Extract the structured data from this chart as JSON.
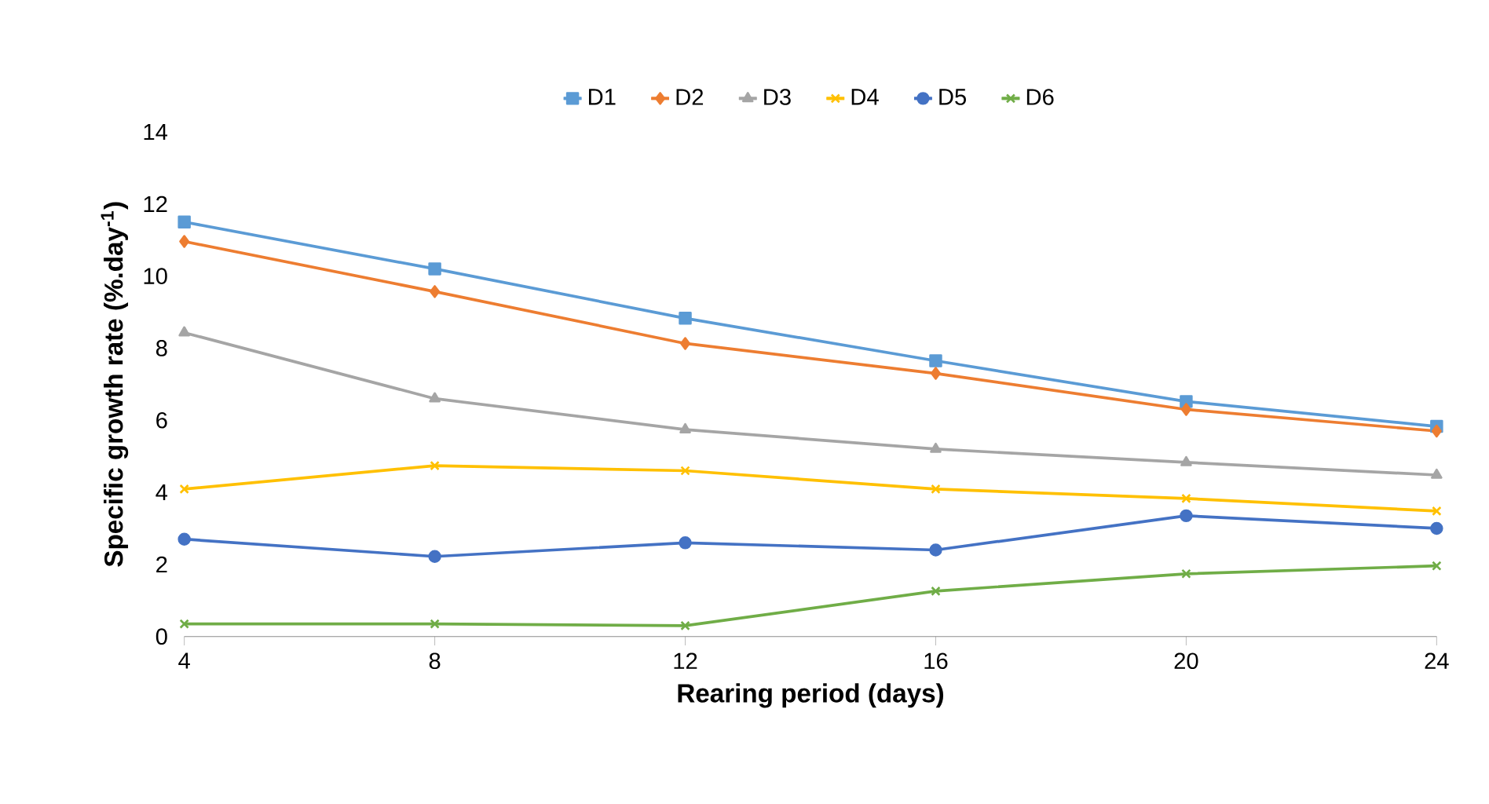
{
  "chart_data": {
    "type": "line",
    "xlabel": "Rearing period (days)",
    "ylabel": "Specific growth rate (%.day$^{-1}$)",
    "x": [
      4,
      8,
      12,
      16,
      20,
      24
    ],
    "xlim": [
      4,
      24
    ],
    "xticks": [
      4,
      8,
      12,
      16,
      20,
      24
    ],
    "ylim": [
      0,
      14
    ],
    "yticks": [
      0,
      2,
      4,
      6,
      8,
      10,
      12,
      14
    ],
    "legend": "top",
    "grid": false,
    "series": [
      {
        "name": "D1",
        "color": "#5b9bd5",
        "marker": "square",
        "values": [
          11.5,
          10.2,
          8.83,
          7.65,
          6.52,
          5.83
        ]
      },
      {
        "name": "D2",
        "color": "#ed7d31",
        "marker": "diamond",
        "values": [
          10.96,
          9.57,
          8.13,
          7.3,
          6.3,
          5.7
        ]
      },
      {
        "name": "D3",
        "color": "#a5a5a5",
        "marker": "triangle",
        "values": [
          8.43,
          6.6,
          5.74,
          5.2,
          4.83,
          4.48
        ]
      },
      {
        "name": "D4",
        "color": "#ffc000",
        "marker": "cross",
        "values": [
          4.09,
          4.74,
          4.6,
          4.09,
          3.83,
          3.48
        ]
      },
      {
        "name": "D5",
        "color": "#4472c4",
        "marker": "circle",
        "values": [
          2.7,
          2.22,
          2.6,
          2.4,
          3.35,
          3.0
        ]
      },
      {
        "name": "D6",
        "color": "#70ad47",
        "marker": "cross",
        "values": [
          0.35,
          0.35,
          0.3,
          1.26,
          1.74,
          1.96
        ]
      }
    ]
  }
}
